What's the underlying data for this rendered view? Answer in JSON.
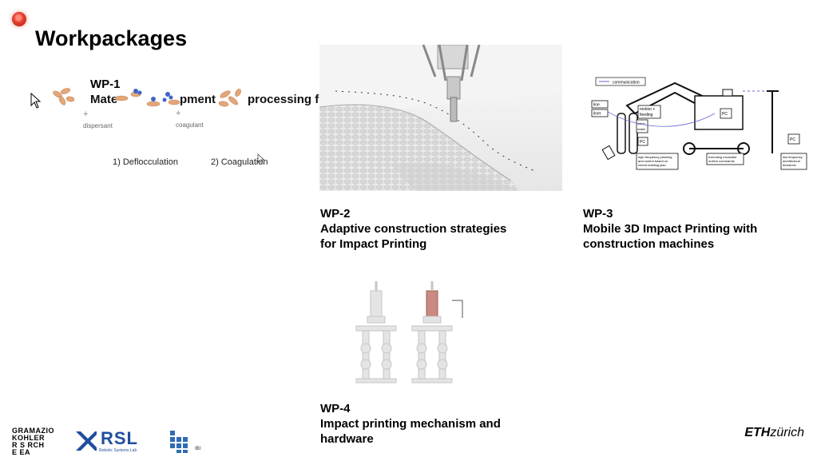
{
  "slide": {
    "title": "Workpackages",
    "wp1": {
      "id": "WP-1",
      "subtitle_left": "Mate",
      "subtitle_mid": "pment",
      "subtitle_right": "processing f",
      "dispersant": "dispersant",
      "coagulant": "coagulant",
      "plus": "+",
      "step1": "1) Deflocculation",
      "step2": "2) Coagulation"
    },
    "wp2": {
      "id": "WP-2",
      "line1": "Adaptive construction strategies",
      "line2": "for Impact Printing"
    },
    "wp3": {
      "id": "WP-3",
      "line1": "Mobile 3D Impact Printing with",
      "line2": "construction machines",
      "diagram": {
        "communication": "communication",
        "line1": "line",
        "line2": "liner",
        "motion": "motion +",
        "feeding": "feeding",
        "batch": "batch",
        "mater": "mater",
        "pc1": "PC",
        "pc2": "PC",
        "pc3": "PC",
        "note1a": "high frequency planning",
        "note1b": "and control based on",
        "note1c": "recent building plan",
        "note2a": "executing excavator",
        "note2b": "motion commands",
        "note3a": "low frequency",
        "note3b": "architectural",
        "note3c": "decisions"
      }
    },
    "wp4": {
      "id": "WP-4",
      "line1": "Impact printing mechanism and",
      "line2": "hardware"
    }
  },
  "footer": {
    "gkr": [
      "GRAMAZIO",
      "KOHLER",
      "R  S  RCH",
      "E  EA"
    ],
    "rsl": "RSL",
    "rsl_sub": "Robotic Systems Lab",
    "ibi": "IBI",
    "eth_bold": "ETH",
    "eth_light": "zürich"
  },
  "colors": {
    "rec": "#e8432f",
    "particle": "#e2a77a",
    "particle_blue": "#3f63c9",
    "wp4_red": "#c98a84"
  }
}
